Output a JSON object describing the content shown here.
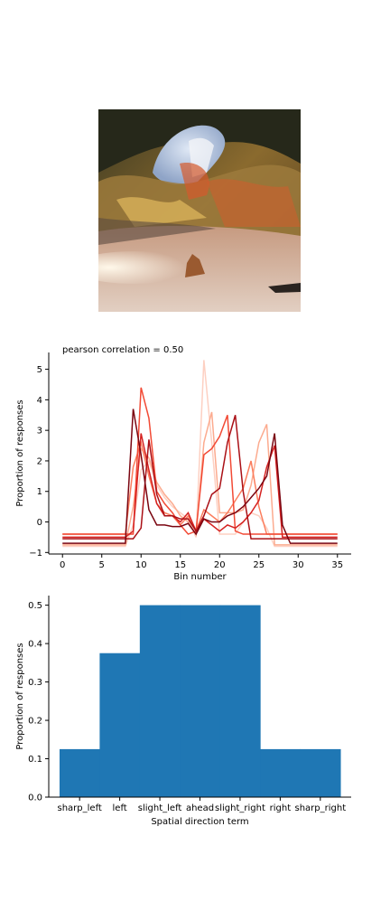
{
  "image": {
    "description_icon": "cave-photo"
  },
  "chart_data": [
    {
      "type": "line",
      "title": "pearson correlation = 0.50",
      "xlabel": "Bin number",
      "ylabel": "Proportion of responses",
      "xlim": [
        -1.75,
        36.75
      ],
      "ylim": [
        -1.05,
        5.55
      ],
      "xticks": [
        0,
        5,
        10,
        15,
        20,
        25,
        30,
        35
      ],
      "yticks": [
        -1,
        0,
        1,
        2,
        3,
        4,
        5
      ],
      "grid": false,
      "x": [
        0,
        1,
        2,
        3,
        4,
        5,
        6,
        7,
        8,
        9,
        10,
        11,
        12,
        13,
        14,
        15,
        16,
        17,
        18,
        19,
        20,
        21,
        22,
        23,
        24,
        25,
        26,
        27,
        28,
        29,
        30,
        31,
        32,
        33,
        34,
        35
      ],
      "colors": [
        "#fdd0c2",
        "#fcab8f",
        "#fb7d5d",
        "#f24a35",
        "#d52221",
        "#aa1016",
        "#7a0510"
      ],
      "series": [
        {
          "values": [
            -0.8,
            -0.8,
            -0.8,
            -0.8,
            -0.8,
            -0.8,
            -0.8,
            -0.8,
            -0.8,
            -0.1,
            1.7,
            2.0,
            1.2,
            0.8,
            0.5,
            0.3,
            0.1,
            -0.5,
            5.3,
            2.6,
            -0.4,
            -0.4,
            -0.4,
            0.0,
            0.3,
            0.2,
            -0.2,
            -0.8,
            -0.8,
            -0.8,
            -0.8,
            -0.8,
            -0.8,
            -0.8,
            -0.8,
            -0.8
          ]
        },
        {
          "values": [
            -0.75,
            -0.75,
            -0.75,
            -0.75,
            -0.75,
            -0.75,
            -0.75,
            -0.75,
            -0.75,
            0.5,
            2.4,
            2.1,
            1.3,
            0.9,
            0.6,
            0.2,
            0.0,
            -0.4,
            2.6,
            3.6,
            0.3,
            0.3,
            0.3,
            0.4,
            1.2,
            2.6,
            3.2,
            -0.75,
            -0.75,
            -0.75,
            -0.75,
            -0.75,
            -0.75,
            -0.75,
            -0.75,
            -0.75
          ]
        },
        {
          "values": [
            -0.4,
            -0.4,
            -0.4,
            -0.4,
            -0.4,
            -0.4,
            -0.4,
            -0.4,
            -0.4,
            1.8,
            2.6,
            1.5,
            0.6,
            0.3,
            0.2,
            -0.1,
            0.2,
            -0.3,
            0.4,
            0.2,
            0.0,
            0.3,
            0.7,
            1.1,
            2.0,
            0.5,
            -0.4,
            -0.4,
            -0.4,
            -0.4,
            -0.4,
            -0.4,
            -0.4,
            -0.4,
            -0.4,
            -0.4
          ]
        },
        {
          "values": [
            -0.4,
            -0.4,
            -0.4,
            -0.4,
            -0.4,
            -0.4,
            -0.4,
            -0.4,
            -0.4,
            -0.4,
            4.4,
            3.4,
            1.0,
            0.6,
            0.3,
            -0.1,
            -0.4,
            -0.3,
            2.2,
            2.4,
            2.8,
            3.5,
            -0.3,
            -0.4,
            -0.4,
            -0.4,
            -0.4,
            -0.4,
            -0.4,
            -0.4,
            -0.4,
            -0.4,
            -0.4,
            -0.4,
            -0.4,
            -0.4
          ]
        },
        {
          "values": [
            -0.5,
            -0.5,
            -0.5,
            -0.5,
            -0.5,
            -0.5,
            -0.5,
            -0.5,
            -0.5,
            -0.3,
            2.9,
            1.7,
            0.6,
            0.2,
            0.2,
            0.0,
            0.3,
            -0.3,
            0.1,
            -0.1,
            -0.3,
            -0.1,
            -0.2,
            0.0,
            0.3,
            0.7,
            1.8,
            2.5,
            -0.5,
            -0.5,
            -0.5,
            -0.5,
            -0.5,
            -0.5,
            -0.5,
            -0.5
          ]
        },
        {
          "values": [
            -0.55,
            -0.55,
            -0.55,
            -0.55,
            -0.55,
            -0.55,
            -0.55,
            -0.55,
            -0.55,
            -0.55,
            -0.2,
            2.7,
            0.9,
            0.2,
            0.2,
            0.1,
            0.1,
            -0.3,
            0.2,
            0.9,
            1.1,
            2.6,
            3.5,
            1.0,
            -0.55,
            -0.55,
            -0.55,
            -0.55,
            -0.55,
            -0.55,
            -0.55,
            -0.55,
            -0.55,
            -0.55,
            -0.55,
            -0.55
          ]
        },
        {
          "values": [
            -0.7,
            -0.7,
            -0.7,
            -0.7,
            -0.7,
            -0.7,
            -0.7,
            -0.7,
            -0.7,
            3.7,
            2.2,
            0.4,
            -0.1,
            -0.1,
            -0.15,
            -0.15,
            -0.05,
            -0.4,
            0.1,
            0.0,
            0.0,
            0.2,
            0.3,
            0.5,
            0.8,
            1.1,
            1.5,
            2.9,
            -0.1,
            -0.7,
            -0.7,
            -0.7,
            -0.7,
            -0.7,
            -0.7,
            -0.7
          ]
        }
      ]
    },
    {
      "type": "bar",
      "xlabel": "Spatial direction term",
      "ylabel": "Proportion of responses",
      "ylim": [
        0,
        0.525
      ],
      "yticks": [
        "0.0",
        "0.1",
        "0.2",
        "0.3",
        "0.4",
        "0.5"
      ],
      "categories": [
        "sharp_left",
        "left",
        "slight_left",
        "ahead",
        "slight_right",
        "right",
        "sharp_right"
      ],
      "values": [
        0.125,
        0.375,
        0.5,
        0.5,
        0.5,
        0.125,
        0.125
      ],
      "bar_color": "#1f77b4",
      "grid": false
    }
  ]
}
